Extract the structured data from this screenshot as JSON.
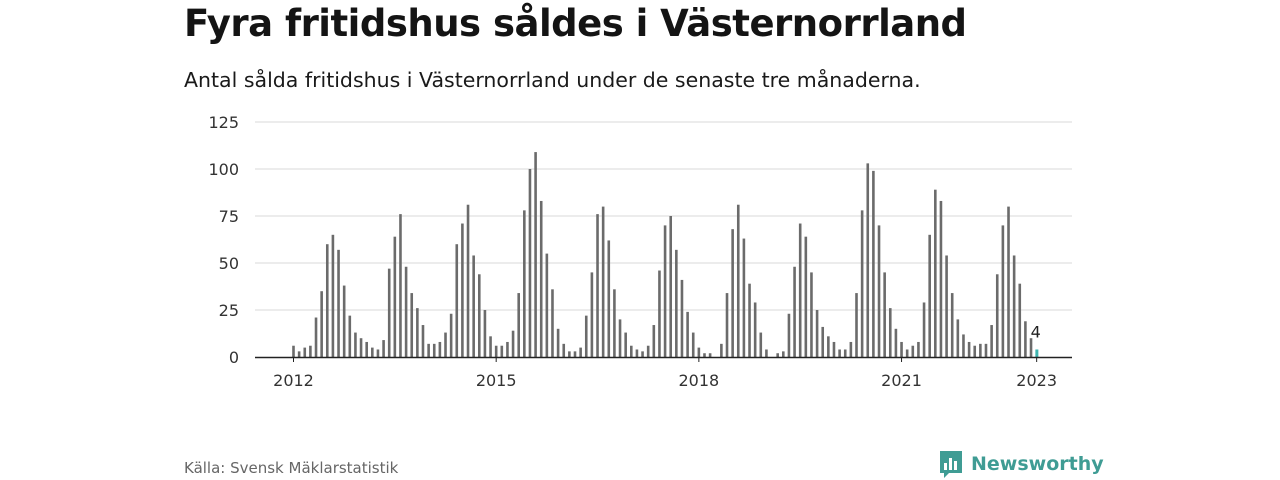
{
  "header": {
    "title": "Fyra fritidshus såldes i Västernorrland",
    "subtitle": "Antal sålda fritidshus i Västernorrland under de senaste tre månaderna."
  },
  "footer": {
    "source": "Källa: Svensk Mäklarstatistik",
    "brand": "Newsworthy"
  },
  "colors": {
    "bar": "#6b6b6b",
    "highlight": "#3fb5b0",
    "grid": "#d9d9d9",
    "brand": "#3f9c94"
  },
  "chart_data": {
    "type": "bar",
    "x_unit": "month",
    "x_start": "2012-01",
    "ylim": [
      0,
      125
    ],
    "yticks": [
      0,
      25,
      50,
      75,
      100,
      125
    ],
    "xticks": [
      {
        "label": "2012",
        "month": "2012-01"
      },
      {
        "label": "2015",
        "month": "2015-01"
      },
      {
        "label": "2018",
        "month": "2018-01"
      },
      {
        "label": "2021",
        "month": "2021-01"
      },
      {
        "label": "2023",
        "month": "2023-01"
      }
    ],
    "grid": true,
    "legend": "none",
    "highlight": {
      "month": "2023-01",
      "value": 4,
      "label": "4"
    },
    "values": [
      6,
      3,
      5,
      6,
      21,
      35,
      60,
      65,
      57,
      38,
      22,
      13,
      10,
      8,
      5,
      4,
      9,
      47,
      64,
      76,
      48,
      34,
      26,
      17,
      7,
      7,
      8,
      13,
      23,
      60,
      71,
      81,
      54,
      44,
      25,
      11,
      6,
      6,
      8,
      14,
      34,
      78,
      100,
      109,
      83,
      55,
      36,
      15,
      7,
      3,
      3,
      5,
      22,
      45,
      76,
      80,
      62,
      36,
      20,
      13,
      6,
      4,
      3,
      6,
      17,
      46,
      70,
      75,
      57,
      41,
      24,
      13,
      5,
      2,
      2,
      0,
      7,
      34,
      68,
      81,
      63,
      39,
      29,
      13,
      4,
      0,
      2,
      3,
      23,
      48,
      71,
      64,
      45,
      25,
      16,
      11,
      8,
      4,
      4,
      8,
      34,
      78,
      103,
      99,
      70,
      45,
      26,
      15,
      8,
      4,
      6,
      8,
      29,
      65,
      89,
      83,
      54,
      34,
      20,
      12,
      8,
      6,
      7,
      7,
      17,
      44,
      70,
      80,
      54,
      39,
      19,
      10,
      4
    ]
  }
}
